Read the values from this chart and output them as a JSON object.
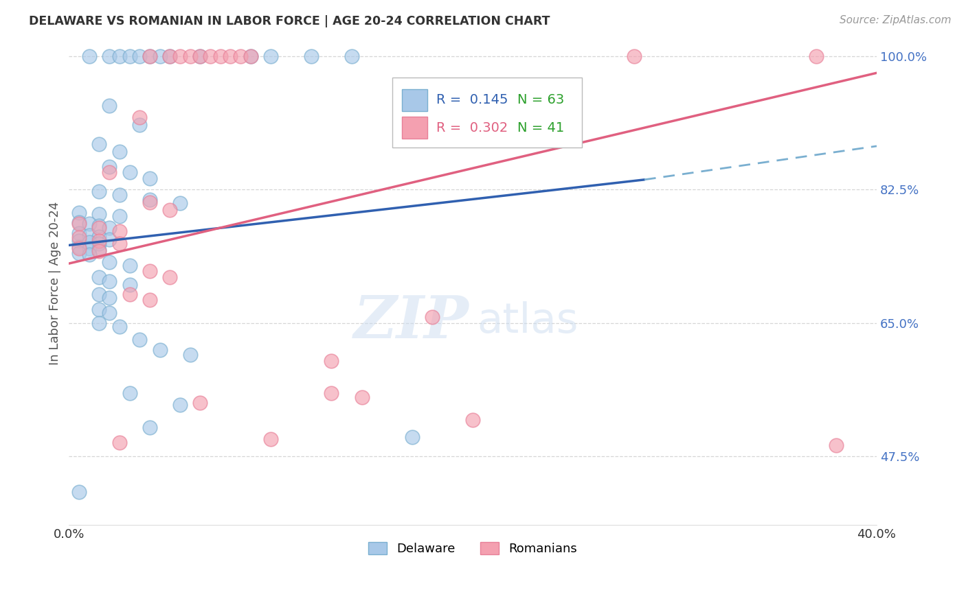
{
  "title": "DELAWARE VS ROMANIAN IN LABOR FORCE | AGE 20-24 CORRELATION CHART",
  "source": "Source: ZipAtlas.com",
  "ylabel": "In Labor Force | Age 20-24",
  "xlim": [
    0.0,
    0.4
  ],
  "ylim": [
    0.385,
    1.02
  ],
  "yticks": [
    0.475,
    0.65,
    0.825,
    1.0
  ],
  "ytick_labels": [
    "47.5%",
    "65.0%",
    "82.5%",
    "100.0%"
  ],
  "xticks": [
    0.0,
    0.05,
    0.1,
    0.15,
    0.2,
    0.25,
    0.3,
    0.35,
    0.4
  ],
  "xtick_labels": [
    "0.0%",
    "",
    "",
    "",
    "",
    "",
    "",
    "",
    "40.0%"
  ],
  "background_color": "#ffffff",
  "grid_color": "#cccccc",
  "legend_R_blue": "0.145",
  "legend_N_blue": "63",
  "legend_R_pink": "0.302",
  "legend_N_pink": "41",
  "blue_fill": "#a8c8e8",
  "pink_fill": "#f4a0b0",
  "blue_edge": "#7aafd0",
  "pink_edge": "#e88098",
  "blue_line_color": "#3060b0",
  "pink_line_color": "#e06080",
  "blue_line_dashed_color": "#7aafd0",
  "blue_scatter": [
    [
      0.01,
      1.0
    ],
    [
      0.02,
      1.0
    ],
    [
      0.025,
      1.0
    ],
    [
      0.03,
      1.0
    ],
    [
      0.035,
      1.0
    ],
    [
      0.04,
      1.0
    ],
    [
      0.045,
      1.0
    ],
    [
      0.05,
      1.0
    ],
    [
      0.065,
      1.0
    ],
    [
      0.09,
      1.0
    ],
    [
      0.1,
      1.0
    ],
    [
      0.12,
      1.0
    ],
    [
      0.14,
      1.0
    ],
    [
      0.02,
      0.935
    ],
    [
      0.035,
      0.91
    ],
    [
      0.015,
      0.885
    ],
    [
      0.025,
      0.875
    ],
    [
      0.02,
      0.855
    ],
    [
      0.03,
      0.848
    ],
    [
      0.04,
      0.84
    ],
    [
      0.015,
      0.823
    ],
    [
      0.025,
      0.818
    ],
    [
      0.04,
      0.812
    ],
    [
      0.055,
      0.807
    ],
    [
      0.005,
      0.795
    ],
    [
      0.015,
      0.793
    ],
    [
      0.025,
      0.79
    ],
    [
      0.005,
      0.782
    ],
    [
      0.01,
      0.78
    ],
    [
      0.015,
      0.778
    ],
    [
      0.02,
      0.775
    ],
    [
      0.005,
      0.768
    ],
    [
      0.01,
      0.765
    ],
    [
      0.015,
      0.763
    ],
    [
      0.02,
      0.76
    ],
    [
      0.005,
      0.758
    ],
    [
      0.01,
      0.756
    ],
    [
      0.015,
      0.754
    ],
    [
      0.005,
      0.75
    ],
    [
      0.01,
      0.748
    ],
    [
      0.015,
      0.746
    ],
    [
      0.005,
      0.742
    ],
    [
      0.01,
      0.74
    ],
    [
      0.02,
      0.73
    ],
    [
      0.03,
      0.725
    ],
    [
      0.015,
      0.71
    ],
    [
      0.02,
      0.705
    ],
    [
      0.03,
      0.7
    ],
    [
      0.015,
      0.688
    ],
    [
      0.02,
      0.683
    ],
    [
      0.015,
      0.668
    ],
    [
      0.02,
      0.663
    ],
    [
      0.015,
      0.65
    ],
    [
      0.025,
      0.645
    ],
    [
      0.035,
      0.628
    ],
    [
      0.045,
      0.615
    ],
    [
      0.06,
      0.608
    ],
    [
      0.03,
      0.558
    ],
    [
      0.055,
      0.543
    ],
    [
      0.04,
      0.513
    ],
    [
      0.17,
      0.5
    ],
    [
      0.005,
      0.428
    ]
  ],
  "pink_scatter": [
    [
      0.04,
      1.0
    ],
    [
      0.05,
      1.0
    ],
    [
      0.055,
      1.0
    ],
    [
      0.06,
      1.0
    ],
    [
      0.065,
      1.0
    ],
    [
      0.07,
      1.0
    ],
    [
      0.075,
      1.0
    ],
    [
      0.08,
      1.0
    ],
    [
      0.085,
      1.0
    ],
    [
      0.09,
      1.0
    ],
    [
      0.28,
      1.0
    ],
    [
      0.37,
      1.0
    ],
    [
      0.035,
      0.92
    ],
    [
      0.02,
      0.848
    ],
    [
      0.04,
      0.808
    ],
    [
      0.05,
      0.798
    ],
    [
      0.005,
      0.78
    ],
    [
      0.015,
      0.775
    ],
    [
      0.025,
      0.77
    ],
    [
      0.005,
      0.762
    ],
    [
      0.015,
      0.758
    ],
    [
      0.025,
      0.754
    ],
    [
      0.005,
      0.748
    ],
    [
      0.015,
      0.744
    ],
    [
      0.04,
      0.718
    ],
    [
      0.05,
      0.71
    ],
    [
      0.03,
      0.688
    ],
    [
      0.04,
      0.68
    ],
    [
      0.18,
      0.658
    ],
    [
      0.13,
      0.6
    ],
    [
      0.13,
      0.558
    ],
    [
      0.145,
      0.553
    ],
    [
      0.065,
      0.545
    ],
    [
      0.2,
      0.523
    ],
    [
      0.1,
      0.498
    ],
    [
      0.025,
      0.493
    ],
    [
      0.38,
      0.49
    ]
  ],
  "blue_solid_line": {
    "x0": 0.0,
    "x1": 0.285,
    "y0": 0.752,
    "y1": 0.838
  },
  "blue_dashed_line": {
    "x0": 0.285,
    "x1": 0.4,
    "y0": 0.838,
    "y1": 0.882
  },
  "pink_solid_line": {
    "x0": 0.0,
    "x1": 0.4,
    "y0": 0.728,
    "y1": 0.978
  }
}
